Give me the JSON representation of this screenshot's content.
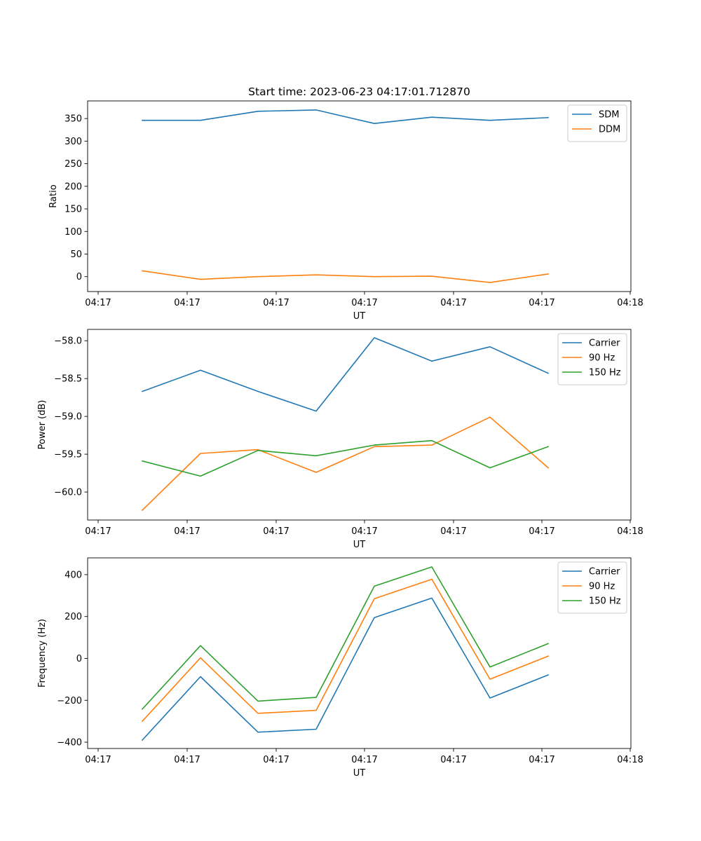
{
  "title": "Start time: 2023-06-23 04:17:01.712870",
  "chart_data": [
    {
      "type": "line",
      "title": "Start time: 2023-06-23 04:17:01.712870",
      "xlabel": "UT",
      "ylabel": "Ratio",
      "x_tick_labels": [
        "04:17",
        "04:17",
        "04:17",
        "04:17",
        "04:17",
        "04:17",
        "04:18"
      ],
      "y_ticks": [
        0,
        50,
        100,
        150,
        200,
        250,
        300,
        350
      ],
      "y_tick_labels": [
        "0",
        "50",
        "100",
        "150",
        "200",
        "250",
        "300",
        "350"
      ],
      "ylim": [
        -33,
        389
      ],
      "legend_position": "upper right",
      "series": [
        {
          "name": "SDM",
          "color": "#1f77b4",
          "values": [
            346,
            346,
            366,
            369,
            339,
            353,
            346,
            352
          ]
        },
        {
          "name": "DDM",
          "color": "#ff7f0e",
          "values": [
            13,
            -6,
            0,
            4,
            0,
            1,
            -13,
            6
          ]
        }
      ]
    },
    {
      "type": "line",
      "title": "",
      "xlabel": "UT",
      "ylabel": "Power (dB)",
      "x_tick_labels": [
        "04:17",
        "04:17",
        "04:17",
        "04:17",
        "04:17",
        "04:17",
        "04:18"
      ],
      "y_ticks": [
        -60.0,
        -59.5,
        -59.0,
        -58.5,
        -58.0
      ],
      "y_tick_labels": [
        "−60.0",
        "−59.5",
        "−59.0",
        "−58.5",
        "−58.0"
      ],
      "ylim": [
        -60.37,
        -57.85
      ],
      "legend_position": "upper right",
      "series": [
        {
          "name": "Carrier",
          "color": "#1f77b4",
          "values": [
            -58.67,
            -58.39,
            -58.67,
            -58.93,
            -57.96,
            -58.27,
            -58.08,
            -58.43
          ]
        },
        {
          "name": "90 Hz",
          "color": "#ff7f0e",
          "values": [
            -60.24,
            -59.49,
            -59.44,
            -59.74,
            -59.4,
            -59.38,
            -59.01,
            -59.68
          ]
        },
        {
          "name": "150 Hz",
          "color": "#2ca02c",
          "values": [
            -59.59,
            -59.79,
            -59.45,
            -59.52,
            -59.38,
            -59.32,
            -59.68,
            -59.4
          ]
        }
      ]
    },
    {
      "type": "line",
      "title": "",
      "xlabel": "UT",
      "ylabel": "Frequency (Hz)",
      "x_tick_labels": [
        "04:17",
        "04:17",
        "04:17",
        "04:17",
        "04:17",
        "04:17",
        "04:18"
      ],
      "y_ticks": [
        -400,
        -200,
        0,
        200,
        400
      ],
      "y_tick_labels": [
        "−400",
        "−200",
        "0",
        "200",
        "400"
      ],
      "ylim": [
        -430,
        480
      ],
      "legend_position": "upper right",
      "series": [
        {
          "name": "Carrier",
          "color": "#1f77b4",
          "values": [
            -390,
            -87,
            -352,
            -338,
            195,
            288,
            -189,
            -79
          ]
        },
        {
          "name": "90 Hz",
          "color": "#ff7f0e",
          "values": [
            -300,
            3,
            -262,
            -248,
            285,
            378,
            -99,
            11
          ]
        },
        {
          "name": "150 Hz",
          "color": "#2ca02c",
          "values": [
            -242,
            61,
            -204,
            -186,
            345,
            437,
            -41,
            71
          ]
        }
      ]
    }
  ]
}
